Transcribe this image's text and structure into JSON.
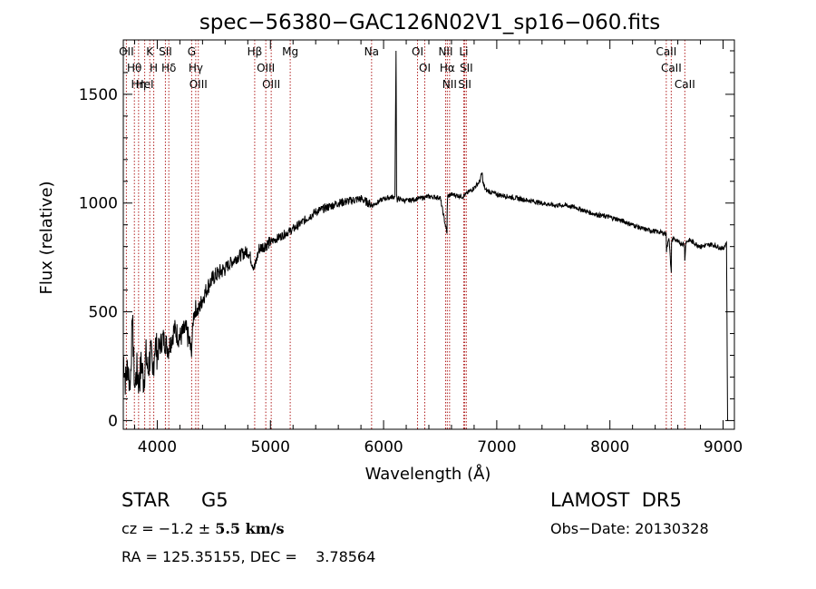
{
  "chart_data": {
    "type": "line",
    "title": "spec−56380−GAC126N02V1_sp16−060.fits",
    "xlabel": "Wavelength (Å)",
    "ylabel": "Flux (relative)",
    "xlim": [
      3700,
      9100
    ],
    "ylim": [
      -40,
      1750
    ],
    "xticks": [
      4000,
      5000,
      6000,
      7000,
      8000,
      9000
    ],
    "yticks": [
      0,
      500,
      1000,
      1500
    ],
    "grid": false,
    "line_color": "#000000",
    "marker_color": "#b22222",
    "series": [
      {
        "x": [
          3700,
          3720,
          3740,
          3760,
          3780,
          3800,
          3820,
          3840,
          3860,
          3880,
          3900,
          3920,
          3940,
          3960,
          3980,
          4000,
          4050,
          4100,
          4150,
          4200,
          4250,
          4290,
          4300,
          4320,
          4340,
          4360,
          4400,
          4450,
          4500,
          4600,
          4700,
          4800,
          4860,
          4900,
          5000,
          5100,
          5200,
          5300,
          5400,
          5500,
          5600,
          5700,
          5800,
          5900,
          6000,
          6100,
          6110,
          6115,
          6120,
          6130,
          6200,
          6300,
          6400,
          6500,
          6560,
          6563,
          6566,
          6600,
          6700,
          6800,
          6850,
          6870,
          6880,
          6900,
          7000,
          7100,
          7200,
          7300,
          7400,
          7500,
          7600,
          7700,
          7800,
          7900,
          8000,
          8100,
          8200,
          8300,
          8400,
          8498,
          8500,
          8520,
          8542,
          8545,
          8560,
          8600,
          8660,
          8662,
          8670,
          8700,
          8800,
          8900,
          9000,
          9030,
          9040,
          9050
        ],
        "y": [
          300,
          180,
          260,
          140,
          470,
          150,
          230,
          170,
          270,
          180,
          300,
          220,
          320,
          210,
          360,
          310,
          380,
          330,
          420,
          380,
          420,
          350,
          300,
          480,
          520,
          500,
          560,
          620,
          660,
          700,
          750,
          780,
          700,
          790,
          820,
          850,
          880,
          920,
          960,
          980,
          1000,
          1010,
          1020,
          990,
          1020,
          1030,
          1700,
          1040,
          1010,
          1020,
          1010,
          1020,
          1030,
          1025,
          860,
          1010,
          1030,
          1040,
          1030,
          1070,
          1100,
          1140,
          1090,
          1060,
          1040,
          1030,
          1020,
          1010,
          1000,
          990,
          990,
          980,
          960,
          945,
          935,
          920,
          900,
          880,
          870,
          860,
          780,
          850,
          680,
          820,
          840,
          820,
          810,
          730,
          820,
          830,
          800,
          810,
          790,
          820,
          0,
          0
        ]
      }
    ],
    "lines": [
      {
        "x": 3727,
        "label": "OII"
      },
      {
        "x": 3798,
        "label": "Hθ"
      },
      {
        "x": 3835,
        "label": "Hη"
      },
      {
        "x": 3889,
        "label": "HeI"
      },
      {
        "x": 3934,
        "label": "K"
      },
      {
        "x": 3969,
        "label": "H"
      },
      {
        "x": 4072,
        "label": "SII"
      },
      {
        "x": 4102,
        "label": "Hδ"
      },
      {
        "x": 4304,
        "label": "G"
      },
      {
        "x": 4340,
        "label": "Hγ"
      },
      {
        "x": 4363,
        "label": "OIII"
      },
      {
        "x": 4861,
        "label": "Hβ"
      },
      {
        "x": 4959,
        "label": "OIII"
      },
      {
        "x": 5007,
        "label": "OIII"
      },
      {
        "x": 5175,
        "label": "Mg"
      },
      {
        "x": 5894,
        "label": "Na"
      },
      {
        "x": 6300,
        "label": "OI"
      },
      {
        "x": 6364,
        "label": "OI"
      },
      {
        "x": 6548,
        "label": "NII"
      },
      {
        "x": 6563,
        "label": "Hα"
      },
      {
        "x": 6583,
        "label": "NII"
      },
      {
        "x": 6708,
        "label": "Li"
      },
      {
        "x": 6717,
        "label": "SII"
      },
      {
        "x": 6731,
        "label": "SII"
      },
      {
        "x": 8498,
        "label": "CaII"
      },
      {
        "x": 8542,
        "label": "CaII"
      },
      {
        "x": 8662,
        "label": "CaII"
      }
    ]
  },
  "info": {
    "class": "STAR",
    "subclass": "G5",
    "survey": "LAMOST  DR5",
    "cz_prefix": "cz = −1.2 ± ",
    "cz_value": "5.5 km/s",
    "obs_date": "Obs−Date: 20130328",
    "radec": "RA = 125.35155, DEC =    3.78564"
  }
}
